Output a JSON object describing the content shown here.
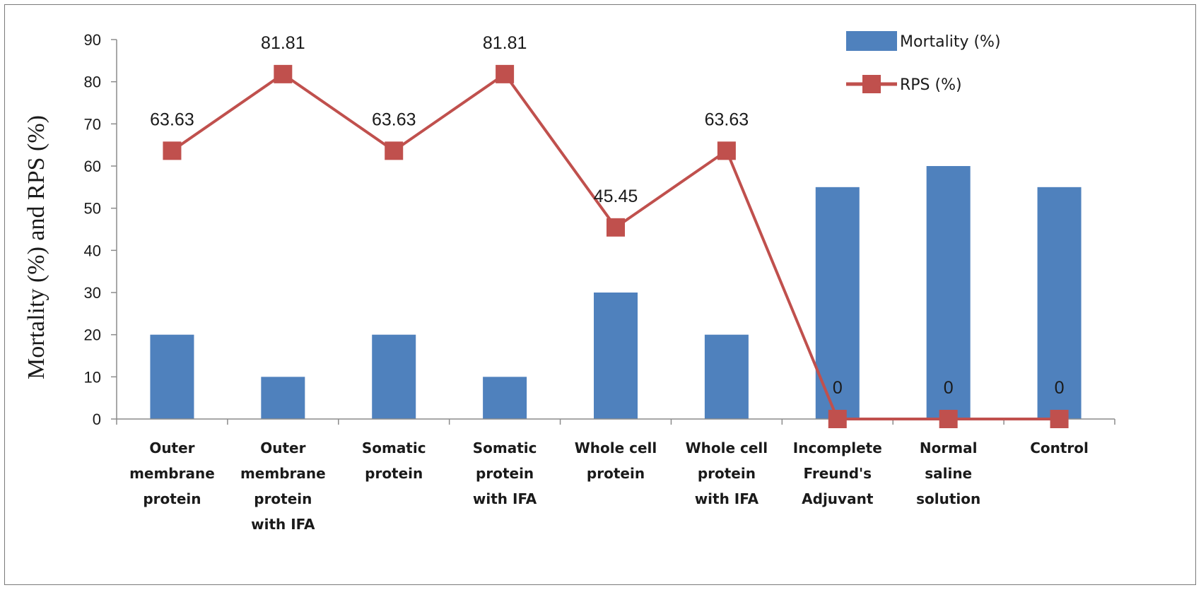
{
  "chart_data": {
    "type": "bar",
    "categories": [
      [
        "Outer",
        "membrane",
        "protein"
      ],
      [
        "Outer",
        "membrane",
        "protein",
        "with IFA"
      ],
      [
        "Somatic",
        "protein"
      ],
      [
        "Somatic",
        "protein",
        "with IFA"
      ],
      [
        "Whole cell",
        "protein"
      ],
      [
        "Whole cell",
        "protein",
        "with IFA"
      ],
      [
        "Incomplete",
        "Freund's",
        "Adjuvant"
      ],
      [
        "Normal",
        "saline",
        "solution"
      ],
      [
        "Control"
      ]
    ],
    "series": [
      {
        "name": "Mortality (%)",
        "type": "bar",
        "color": "#4f81bd",
        "values": [
          20,
          10,
          20,
          10,
          30,
          20,
          55,
          60,
          55
        ]
      },
      {
        "name": "RPS (%)",
        "type": "line",
        "color": "#c0504d",
        "marker": "square",
        "values": [
          63.63,
          81.81,
          63.63,
          81.81,
          45.45,
          63.63,
          0,
          0,
          0
        ],
        "data_labels": [
          "63.63",
          "81.81",
          "63.63",
          "81.81",
          "45.45",
          "63.63",
          "0",
          "0",
          "0"
        ]
      }
    ],
    "ylabel": "Mortality (%) and RPS (%)",
    "ylim": [
      0,
      90
    ],
    "yticks": [
      0,
      10,
      20,
      30,
      40,
      50,
      60,
      70,
      80,
      90
    ],
    "grid": false,
    "legend": "top-right"
  }
}
